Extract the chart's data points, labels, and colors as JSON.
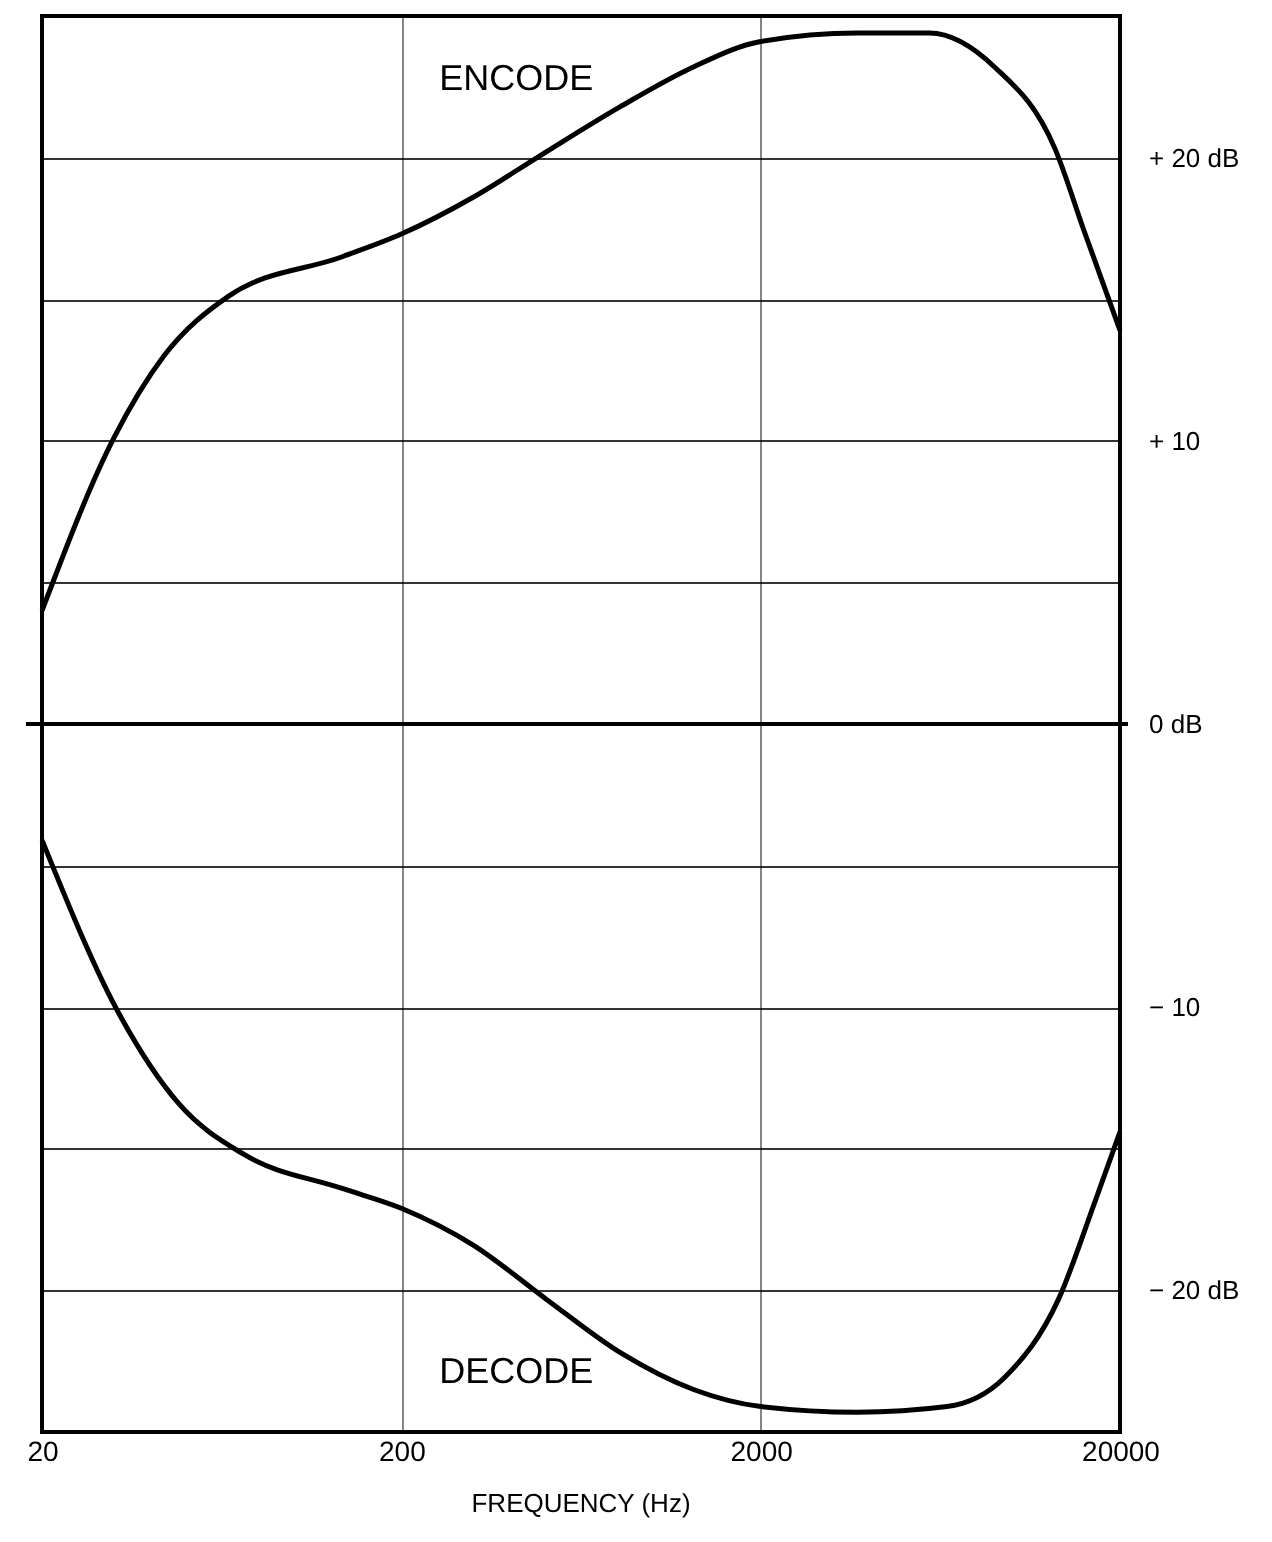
{
  "chart_data": {
    "type": "line",
    "xlabel": "FREQUENCY (Hz)",
    "log": "x",
    "xlim": [
      20,
      20000
    ],
    "xticks": [
      20,
      200,
      2000,
      20000
    ],
    "ylim": [
      -25,
      25
    ],
    "yticks": [
      {
        "value": -20,
        "label": "− 20 dB"
      },
      {
        "value": -15,
        "label": null
      },
      {
        "value": -10,
        "label": "− 10"
      },
      {
        "value": -5,
        "label": null
      },
      {
        "value": 0,
        "label": "0 dB"
      },
      {
        "value": 5,
        "label": null
      },
      {
        "value": 10,
        "label": "+ 10"
      },
      {
        "value": 15,
        "label": null
      },
      {
        "value": 20,
        "label": "+ 20 dB"
      }
    ],
    "grid": true,
    "marker": "none",
    "line_style": "solid",
    "series": [
      {
        "name": "ENCODE",
        "color": "#000000",
        "x": [
          20,
          31.7,
          43.7,
          66,
          137,
          200,
          317,
          491,
          814,
          1300,
          2000,
          3720,
          5900,
          8950,
          13200,
          15900,
          20000
        ],
        "values": [
          4.0,
          10.1,
          13.0,
          15.1,
          16.5,
          17.3,
          18.6,
          20.1,
          21.8,
          23.2,
          24.1,
          24.4,
          24.4,
          23.2,
          20.3,
          17.4,
          13.9
        ]
      },
      {
        "name": "DECODE",
        "color": "#000000",
        "x": [
          20,
          33,
          48,
          73,
          137,
          200,
          317,
          505,
          814,
          1300,
          2000,
          3720,
          6600,
          9500,
          13500,
          17000,
          20000
        ],
        "values": [
          -4.1,
          -10.3,
          -13.4,
          -15.2,
          -16.4,
          -17.1,
          -18.4,
          -20.3,
          -22.2,
          -23.5,
          -24.1,
          -24.3,
          -24.1,
          -23.1,
          -20.3,
          -16.9,
          -14.4
        ]
      }
    ]
  }
}
